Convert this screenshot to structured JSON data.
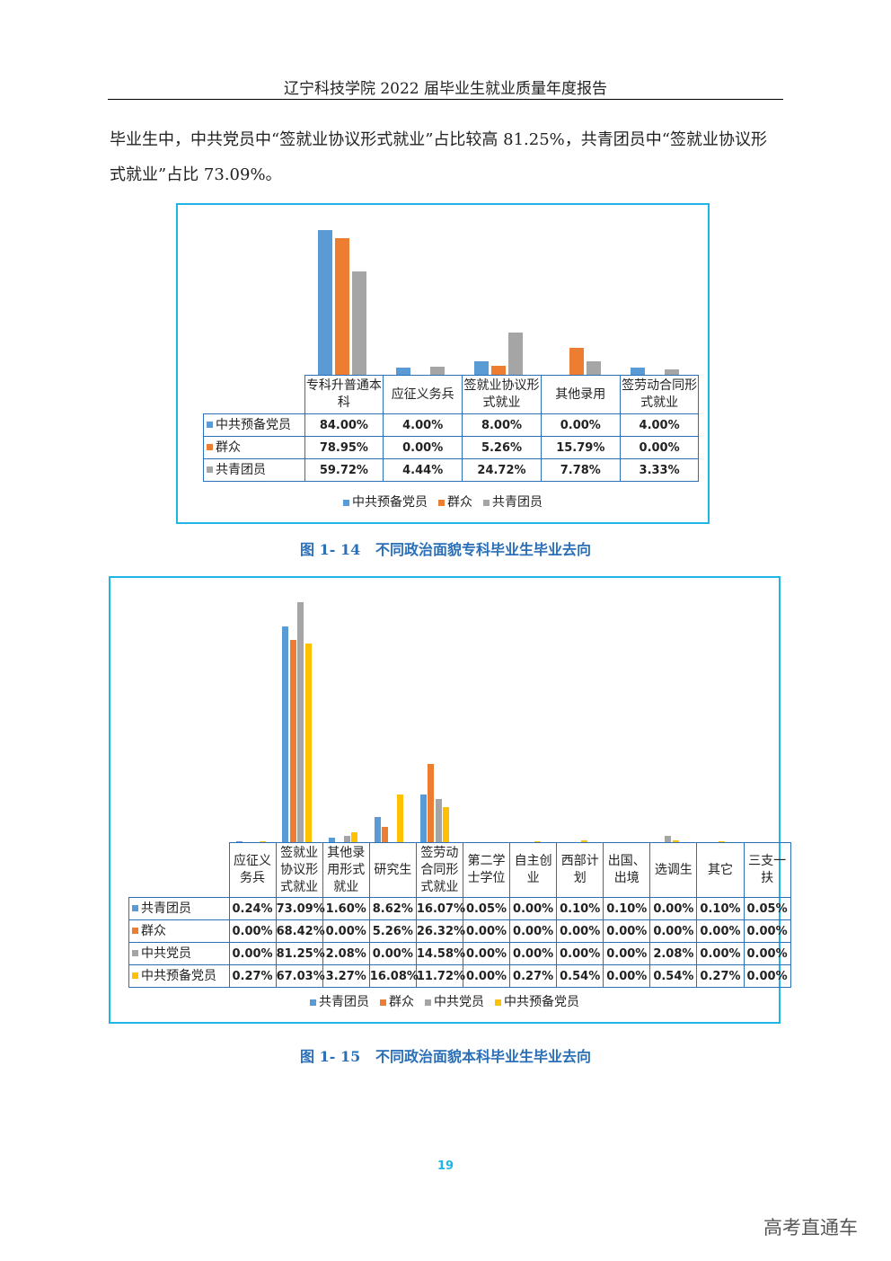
{
  "header": {
    "title": "辽宁科技学院 2022 届毕业生就业质量年度报告"
  },
  "body": {
    "paragraph": "毕业生中，中共党员中“签就业协议形式就业”占比较高 81.25%，共青团员中“签就业协议形式就业”占比 73.09%。"
  },
  "chart_data": [
    {
      "type": "bar",
      "title": "图 1- 14   不同政治面貌专科毕业生毕业去向",
      "categories": [
        "专科升普通本科",
        "应征义务兵",
        "签就业协议形式就业",
        "其他录用",
        "签劳动合同形式就业"
      ],
      "series": [
        {
          "name": "中共预备党员",
          "color": "#5b9bd5",
          "values": [
            84.0,
            4.0,
            8.0,
            0.0,
            4.0
          ],
          "value_labels": [
            "84.00%",
            "4.00%",
            "8.00%",
            "0.00%",
            "4.00%"
          ]
        },
        {
          "name": "群众",
          "color": "#ed7d31",
          "values": [
            78.95,
            0.0,
            5.26,
            15.79,
            0.0
          ],
          "value_labels": [
            "78.95%",
            "0.00%",
            "5.26%",
            "15.79%",
            "0.00%"
          ]
        },
        {
          "name": "共青团员",
          "color": "#a5a5a5",
          "values": [
            59.72,
            4.44,
            24.72,
            7.78,
            3.33
          ],
          "value_labels": [
            "59.72%",
            "4.44%",
            "24.72%",
            "7.78%",
            "3.33%"
          ]
        }
      ],
      "legend": "bottom"
    },
    {
      "type": "bar",
      "title": "图 1- 15   不同政治面貌本科毕业生毕业去向",
      "categories": [
        "应征义务兵",
        "签就业协议形式就业",
        "其他录用形式就业",
        "研究生",
        "签劳动合同形式就业",
        "第二学士学位",
        "自主创业",
        "西部计划",
        "出国、出境",
        "选调生",
        "其它",
        "三支一扶"
      ],
      "series": [
        {
          "name": "共青团员",
          "color": "#5b9bd5",
          "values": [
            0.24,
            73.09,
            1.6,
            8.62,
            16.07,
            0.05,
            0.0,
            0.1,
            0.1,
            0.0,
            0.1,
            0.05
          ],
          "value_labels": [
            "0.24%",
            "73.09%",
            "1.60%",
            "8.62%",
            "16.07%",
            "0.05%",
            "0.00%",
            "0.10%",
            "0.10%",
            "0.00%",
            "0.10%",
            "0.05%"
          ]
        },
        {
          "name": "群众",
          "color": "#ed7d31",
          "values": [
            0.0,
            68.42,
            0.0,
            5.26,
            26.32,
            0.0,
            0.0,
            0.0,
            0.0,
            0.0,
            0.0,
            0.0
          ],
          "value_labels": [
            "0.00%",
            "68.42%",
            "0.00%",
            "5.26%",
            "26.32%",
            "0.00%",
            "0.00%",
            "0.00%",
            "0.00%",
            "0.00%",
            "0.00%",
            "0.00%"
          ]
        },
        {
          "name": "中共党员",
          "color": "#a5a5a5",
          "values": [
            0.0,
            81.25,
            2.08,
            0.0,
            14.58,
            0.0,
            0.0,
            0.0,
            0.0,
            2.08,
            0.0,
            0.0
          ],
          "value_labels": [
            "0.00%",
            "81.25%",
            "2.08%",
            "0.00%",
            "14.58%",
            "0.00%",
            "0.00%",
            "0.00%",
            "0.00%",
            "2.08%",
            "0.00%",
            "0.00%"
          ]
        },
        {
          "name": "中共预备党员",
          "color": "#ffc000",
          "values": [
            0.27,
            67.03,
            3.27,
            16.08,
            11.72,
            0.0,
            0.27,
            0.54,
            0.0,
            0.54,
            0.27,
            0.0
          ],
          "value_labels": [
            "0.27%",
            "67.03%",
            "3.27%",
            "16.08%",
            "11.72%",
            "0.00%",
            "0.27%",
            "0.54%",
            "0.00%",
            "0.54%",
            "0.27%",
            "0.00%"
          ]
        }
      ],
      "legend": "bottom"
    }
  ],
  "footer": {
    "page_number": "19",
    "watermark": "高考直通车"
  }
}
